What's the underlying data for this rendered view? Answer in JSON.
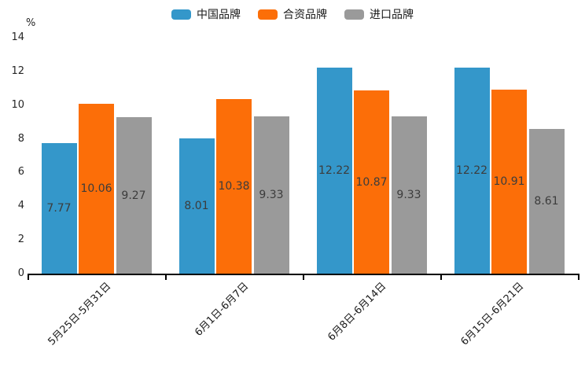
{
  "chart_data": {
    "type": "bar",
    "title": "",
    "xlabel": "",
    "ylabel": "%",
    "ylim": [
      0,
      14
    ],
    "yticks": [
      0,
      2,
      4,
      6,
      8,
      10,
      12,
      14
    ],
    "grid": false,
    "legend_position": "top-center",
    "categories": [
      "5月25日-5月31日",
      "6月1日-6月7日",
      "6月8日-6月14日",
      "6月15日-6月21日"
    ],
    "series": [
      {
        "name": "中国品牌",
        "color": "#3497CA",
        "values": [
          7.77,
          8.01,
          12.22,
          12.22
        ]
      },
      {
        "name": "合资品牌",
        "color": "#FC6E08",
        "values": [
          10.06,
          10.38,
          10.87,
          10.91
        ]
      },
      {
        "name": "进口品牌",
        "color": "#9A9A9A",
        "values": [
          9.27,
          9.33,
          9.33,
          8.61
        ]
      }
    ],
    "bar_value_labels": true,
    "value_label_color": "#3c3c3c",
    "axis_color": "#000000"
  }
}
